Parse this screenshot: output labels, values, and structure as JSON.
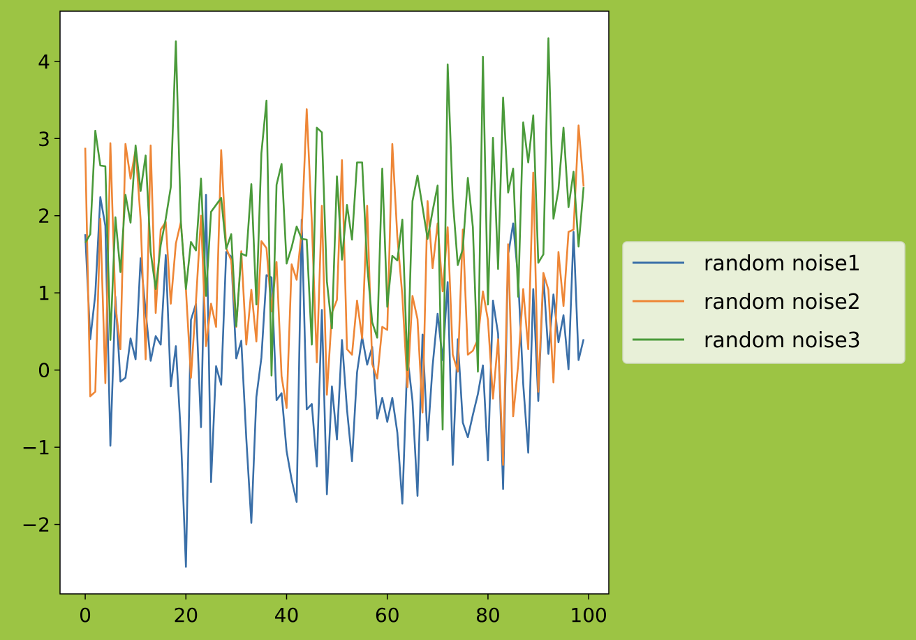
{
  "chart_data": {
    "type": "line",
    "title": "",
    "xlabel": "",
    "ylabel": "",
    "xlim": [
      -5,
      104
    ],
    "ylim": [
      -2.9,
      4.65
    ],
    "x_ticks": [
      0,
      20,
      40,
      60,
      80,
      100
    ],
    "y_ticks": [
      -2,
      -1,
      0,
      1,
      2,
      3,
      4
    ],
    "y_tick_labels": [
      "−2",
      "−1",
      "0",
      "1",
      "2",
      "3",
      "4"
    ],
    "x_tick_labels": [
      "0",
      "20",
      "40",
      "60",
      "80",
      "100"
    ],
    "grid": false,
    "legend_position": "center-right-outside",
    "background_color": "#9cc444",
    "plot_background": "#ffffff",
    "legend_background": "#e8f0d8",
    "x": [
      0,
      1,
      2,
      3,
      4,
      5,
      6,
      7,
      8,
      9,
      10,
      11,
      12,
      13,
      14,
      15,
      16,
      17,
      18,
      19,
      20,
      21,
      22,
      23,
      24,
      25,
      26,
      27,
      28,
      29,
      30,
      31,
      32,
      33,
      34,
      35,
      36,
      37,
      38,
      39,
      40,
      41,
      42,
      43,
      44,
      45,
      46,
      47,
      48,
      49,
      50,
      51,
      52,
      53,
      54,
      55,
      56,
      57,
      58,
      59,
      60,
      61,
      62,
      63,
      64,
      65,
      66,
      67,
      68,
      69,
      70,
      71,
      72,
      73,
      74,
      75,
      76,
      77,
      78,
      79,
      80,
      81,
      82,
      83,
      84,
      85,
      86,
      87,
      88,
      89,
      90,
      91,
      92,
      93,
      94,
      95,
      96,
      97,
      98,
      99
    ],
    "series": [
      {
        "name": "random noise1",
        "color": "#3a6fa8",
        "values": [
          1.76,
          0.4,
          0.98,
          2.24,
          1.87,
          -0.98,
          0.95,
          -0.15,
          -0.1,
          0.41,
          0.14,
          1.45,
          0.76,
          0.12,
          0.44,
          0.33,
          1.49,
          -0.21,
          0.31,
          -0.85,
          -2.55,
          0.65,
          0.86,
          -0.74,
          2.27,
          -1.45,
          0.05,
          -0.19,
          1.53,
          1.47,
          0.15,
          0.38,
          -0.89,
          -1.98,
          -0.35,
          0.16,
          1.23,
          1.2,
          -0.39,
          -0.3,
          -1.05,
          -1.42,
          -1.71,
          1.95,
          -0.51,
          -0.44,
          -1.25,
          0.78,
          -1.61,
          -0.21,
          -0.9,
          0.39,
          -0.51,
          -1.18,
          -0.03,
          0.43,
          0.07,
          0.3,
          -0.63,
          -0.36,
          -0.67,
          -0.36,
          -0.81,
          -1.73,
          0.18,
          -0.4,
          -1.63,
          0.46,
          -0.91,
          0.05,
          0.73,
          0.13,
          1.14,
          -1.23,
          0.4,
          -0.68,
          -0.87,
          -0.58,
          -0.31,
          0.06,
          -1.17,
          0.9,
          0.47,
          -1.54,
          1.49,
          1.9,
          1.18,
          -0.18,
          -1.07,
          1.05,
          -0.4,
          1.22,
          0.21,
          0.98,
          0.36,
          0.71,
          0.01,
          1.79,
          0.13,
          0.4
        ]
      },
      {
        "name": "random noise2",
        "color": "#ee8636",
        "values": [
          2.88,
          -0.34,
          -0.28,
          1.96,
          -0.17,
          2.94,
          0.84,
          0.27,
          2.93,
          2.48,
          2.86,
          1.95,
          0.14,
          2.91,
          0.74,
          1.82,
          1.92,
          0.86,
          1.64,
          1.92,
          1.05,
          -0.1,
          0.89,
          2.0,
          0.31,
          0.86,
          0.56,
          2.85,
          1.58,
          1.42,
          0.56,
          1.54,
          0.33,
          1.04,
          0.37,
          1.67,
          1.58,
          0.76,
          1.4,
          -0.08,
          -0.49,
          1.37,
          1.17,
          1.8,
          3.38,
          1.92,
          0.1,
          2.13,
          -0.32,
          0.74,
          0.91,
          2.72,
          0.27,
          0.2,
          0.9,
          0.41,
          2.13,
          0.08,
          -0.11,
          0.56,
          0.52,
          2.93,
          1.73,
          0.96,
          -0.22,
          0.96,
          0.66,
          -0.55,
          2.19,
          1.32,
          1.9,
          1.02,
          1.85,
          0.2,
          -0.02,
          1.82,
          0.2,
          0.25,
          0.4,
          1.02,
          0.65,
          -0.37,
          0.4,
          -1.23,
          1.63,
          -0.6,
          0.07,
          1.05,
          0.27,
          2.56,
          -0.28,
          1.26,
          1.04,
          -0.16,
          1.53,
          0.83,
          1.79,
          1.82,
          3.17,
          2.38
        ]
      },
      {
        "name": "random noise3",
        "color": "#4a9a3a",
        "values": [
          1.65,
          1.76,
          3.1,
          2.65,
          2.64,
          0.39,
          1.98,
          1.27,
          2.27,
          1.91,
          2.91,
          2.32,
          2.78,
          1.53,
          1.05,
          1.62,
          1.96,
          2.37,
          4.26,
          1.91,
          1.05,
          1.66,
          1.55,
          2.48,
          0.96,
          2.05,
          2.14,
          2.23,
          1.57,
          1.76,
          0.57,
          1.51,
          1.48,
          2.41,
          0.85,
          2.81,
          3.49,
          -0.07,
          2.4,
          2.67,
          1.38,
          1.59,
          1.86,
          1.7,
          1.69,
          0.33,
          3.14,
          3.08,
          1.15,
          0.54,
          2.51,
          1.43,
          2.14,
          1.69,
          2.69,
          2.69,
          1.36,
          0.62,
          0.42,
          2.61,
          0.82,
          1.48,
          1.42,
          1.95,
          0.0,
          2.19,
          2.52,
          2.11,
          1.7,
          2.06,
          2.39,
          -0.77,
          3.96,
          2.21,
          1.36,
          1.57,
          2.49,
          1.85,
          -0.02,
          4.06,
          0.85,
          3.01,
          1.31,
          3.53,
          2.3,
          2.61,
          0.95,
          3.21,
          2.69,
          3.3,
          1.39,
          1.5,
          4.3,
          1.96,
          2.34,
          3.14,
          2.11,
          2.57,
          1.6,
          2.37
        ]
      }
    ]
  }
}
